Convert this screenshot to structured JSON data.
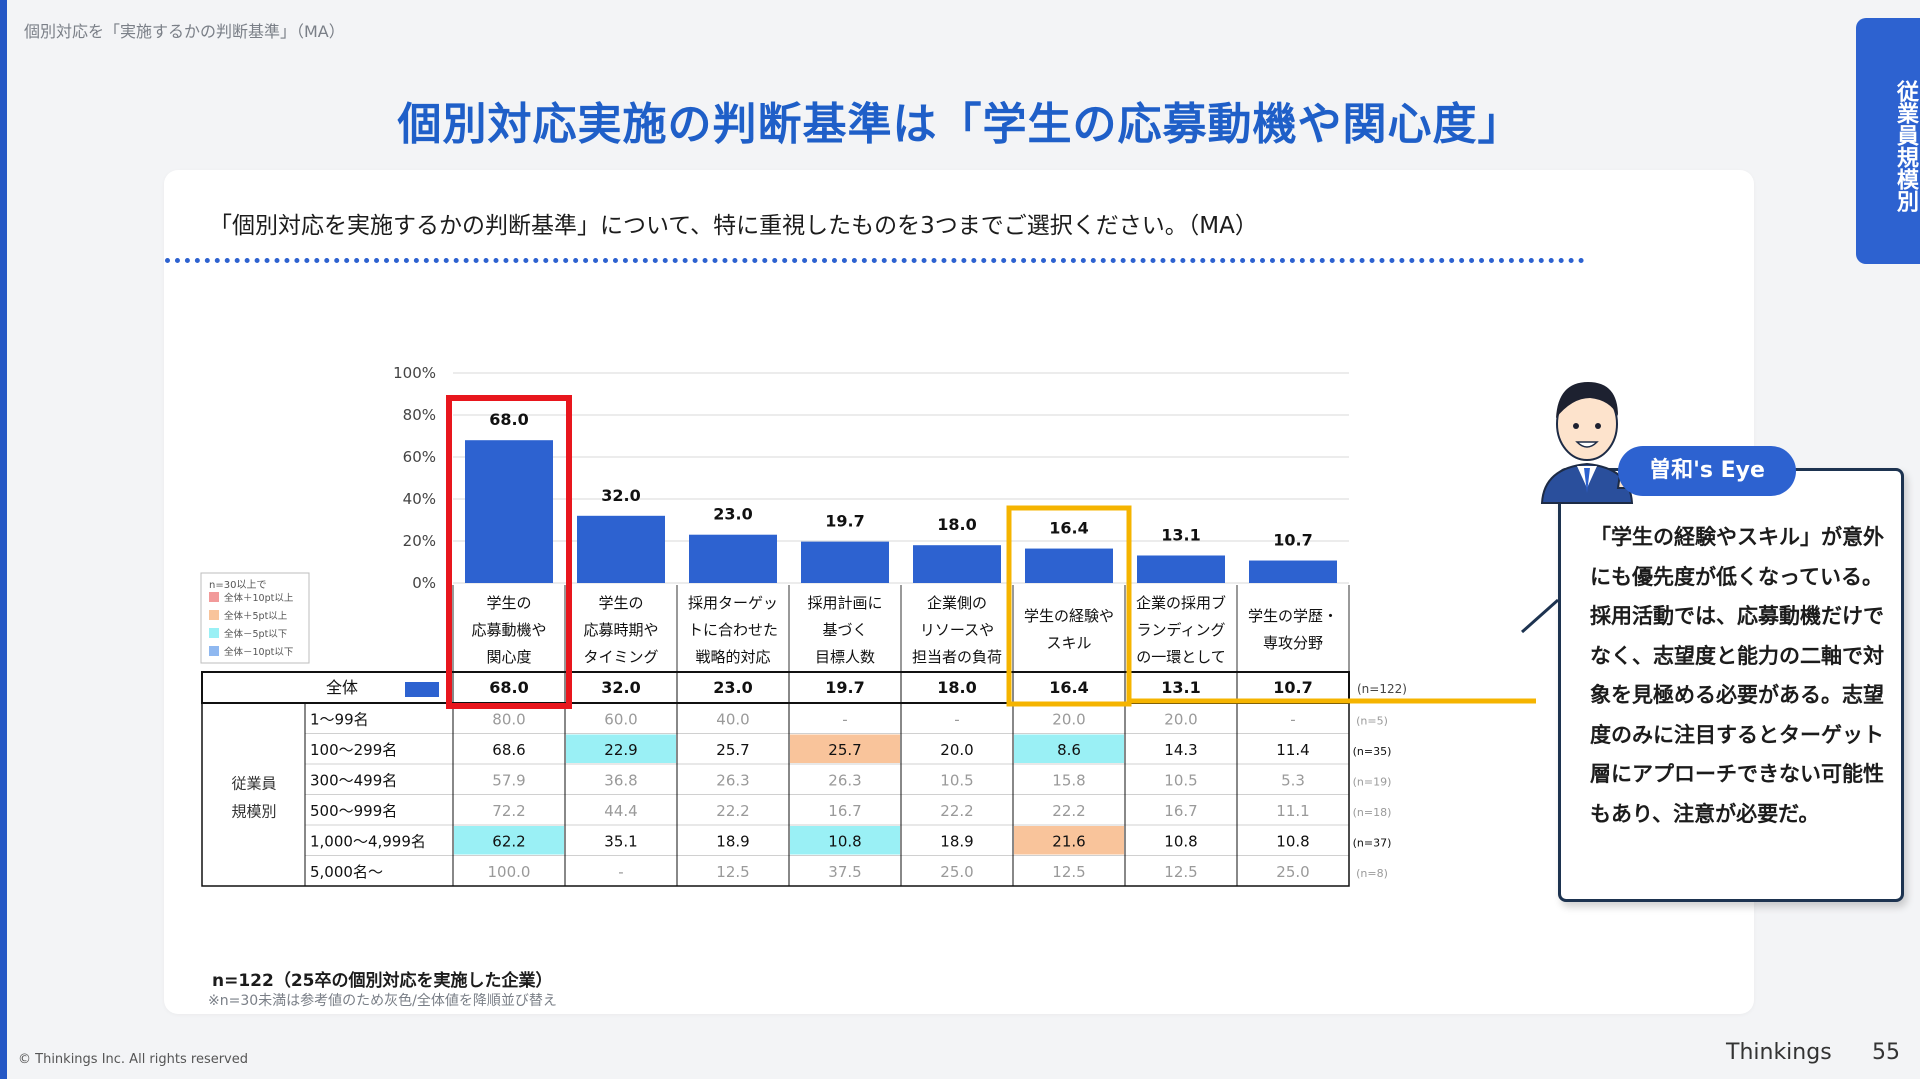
{
  "breadcrumb": "個別対応を「実施するかの判断基準」（MA）",
  "main_title": "個別対応実施の判断基準は「学生の応募動機や関心度」",
  "side_tab": "従業員規模別",
  "question": "「個別対応を実施するかの判断基準」について、特に重視したものを3つまでご選択ください。（MA）",
  "footer": {
    "n_label": "n=122（25卒の個別対応を実施した企業）",
    "note": "※n=30未満は参考値のため灰色/全体値を降順並び替え",
    "copyright": "© Thinkings Inc. All rights reserved",
    "brand": "Thinkings",
    "page": "55"
  },
  "eye": {
    "label": "曽和's Eye",
    "text": "「学生の経験やスキル」が意外にも優先度が低くなっている。採用活動では、応募動機だけでなく、志望度と能力の二軸で対象を見極める必要がある。志望度のみに注目するとターゲット層にアプローチできない可能性もあり、注意が必要だ。"
  },
  "legend": {
    "title": "n=30以上で",
    "items": [
      {
        "label": "全体＋10pt以上",
        "color": "#f29a9a"
      },
      {
        "label": "全体＋5pt以上",
        "color": "#f9c49b"
      },
      {
        "label": "全体－5pt以下",
        "color": "#9af0f5"
      },
      {
        "label": "全体－10pt以下",
        "color": "#8fb8f0"
      }
    ]
  },
  "colors": {
    "bar": "#2d62d0",
    "highlight_red": "#e8161d",
    "highlight_yellow": "#f5b400",
    "cyan": "#9af0f5",
    "orange": "#f9c49b"
  },
  "chart_data": {
    "type": "bar",
    "ylim": [
      0,
      100
    ],
    "y_ticks": [
      "0%",
      "20%",
      "40%",
      "60%",
      "80%",
      "100%"
    ],
    "categories": [
      [
        "学生の",
        "応募動機や",
        "関心度"
      ],
      [
        "学生の",
        "応募時期や",
        "タイミング"
      ],
      [
        "採用ターゲッ",
        "トに合わせた",
        "戦略的対応"
      ],
      [
        "採用計画に",
        "基づく",
        "目標人数"
      ],
      [
        "企業側の",
        "リソースや",
        "担当者の負荷"
      ],
      [
        "学生の経験や",
        "スキル"
      ],
      [
        "企業の採用ブ",
        "ランディング",
        "の一環として"
      ],
      [
        "学生の学歴・",
        "専攻分野"
      ]
    ],
    "values": [
      68.0,
      32.0,
      23.0,
      19.7,
      18.0,
      16.4,
      13.1,
      10.7
    ],
    "value_labels": [
      "68.0",
      "32.0",
      "23.0",
      "19.7",
      "18.0",
      "16.4",
      "13.1",
      "10.7"
    ],
    "highlight_red_index": 0,
    "highlight_yellow_index": 5,
    "table": {
      "total_label": "全体",
      "total_n": "(n=122)",
      "group_label": [
        "従業員",
        "規模別"
      ],
      "rows": [
        {
          "label": "1～99名",
          "n": "(n=5)",
          "gray": true,
          "values": [
            "80.0",
            "60.0",
            "40.0",
            "-",
            "-",
            "20.0",
            "20.0",
            "-"
          ],
          "fills": [
            "",
            "",
            "",
            "",
            "",
            "",
            "",
            ""
          ]
        },
        {
          "label": "100～299名",
          "n": "(n=35)",
          "gray": false,
          "values": [
            "68.6",
            "22.9",
            "25.7",
            "25.7",
            "20.0",
            "8.6",
            "14.3",
            "11.4"
          ],
          "fills": [
            "",
            "cyan",
            "",
            "orange",
            "",
            "cyan",
            "",
            ""
          ]
        },
        {
          "label": "300～499名",
          "n": "(n=19)",
          "gray": true,
          "values": [
            "57.9",
            "36.8",
            "26.3",
            "26.3",
            "10.5",
            "15.8",
            "10.5",
            "5.3"
          ],
          "fills": [
            "",
            "",
            "",
            "",
            "",
            "",
            "",
            ""
          ]
        },
        {
          "label": "500～999名",
          "n": "(n=18)",
          "gray": true,
          "values": [
            "72.2",
            "44.4",
            "22.2",
            "16.7",
            "22.2",
            "22.2",
            "16.7",
            "11.1"
          ],
          "fills": [
            "",
            "",
            "",
            "",
            "",
            "",
            "",
            ""
          ]
        },
        {
          "label": "1,000～4,999名",
          "n": "(n=37)",
          "gray": false,
          "values": [
            "62.2",
            "35.1",
            "18.9",
            "10.8",
            "18.9",
            "21.6",
            "10.8",
            "10.8"
          ],
          "fills": [
            "cyan",
            "",
            "",
            "cyan",
            "",
            "orange",
            "",
            ""
          ]
        },
        {
          "label": "5,000名～",
          "n": "(n=8)",
          "gray": true,
          "values": [
            "100.0",
            "-",
            "12.5",
            "37.5",
            "25.0",
            "12.5",
            "12.5",
            "25.0"
          ],
          "fills": [
            "",
            "",
            "",
            "",
            "",
            "",
            "",
            ""
          ]
        }
      ]
    }
  }
}
